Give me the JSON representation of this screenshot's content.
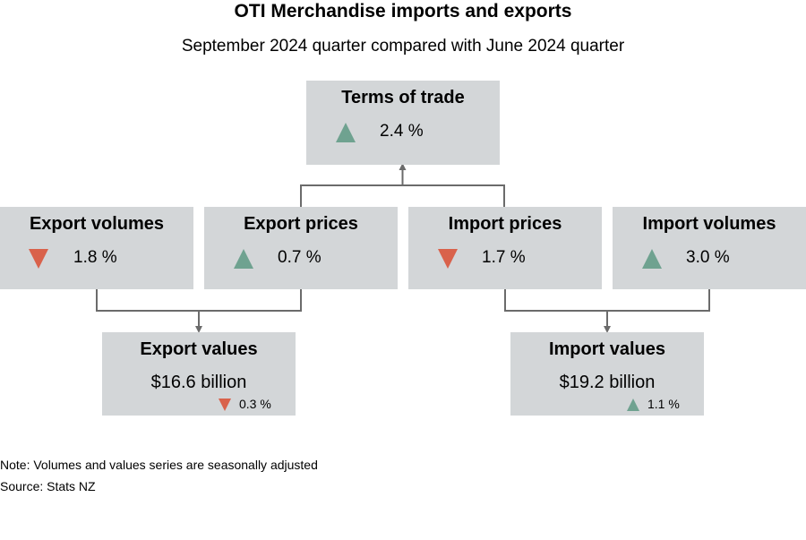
{
  "header": {
    "title": "OTI Merchandise imports and exports",
    "subtitle": "September 2024 quarter compared with June 2024 quarter"
  },
  "boxes": {
    "terms_of_trade": {
      "label": "Terms of trade",
      "change": "2.4 %",
      "direction": "up"
    },
    "export_volumes": {
      "label": "Export volumes",
      "change": "1.8 %",
      "direction": "down"
    },
    "export_prices": {
      "label": "Export prices",
      "change": "0.7 %",
      "direction": "up"
    },
    "import_prices": {
      "label": "Import prices",
      "change": "1.7 %",
      "direction": "down"
    },
    "import_volumes": {
      "label": "Import volumes",
      "change": "3.0 %",
      "direction": "up"
    },
    "export_values": {
      "label": "Export values",
      "amount": "$16.6 billion",
      "change": "0.3 %",
      "direction": "down"
    },
    "import_values": {
      "label": "Import values",
      "amount": "$19.2 billion",
      "change": "1.1 %",
      "direction": "up"
    }
  },
  "colors": {
    "box_fill": "#d3d6d8",
    "connector": "#6b6b6b",
    "up": "#6fa290",
    "down": "#d9624b"
  },
  "footer": {
    "note": "Note: Volumes and values series are seasonally adjusted",
    "source": "Source: Stats NZ"
  }
}
